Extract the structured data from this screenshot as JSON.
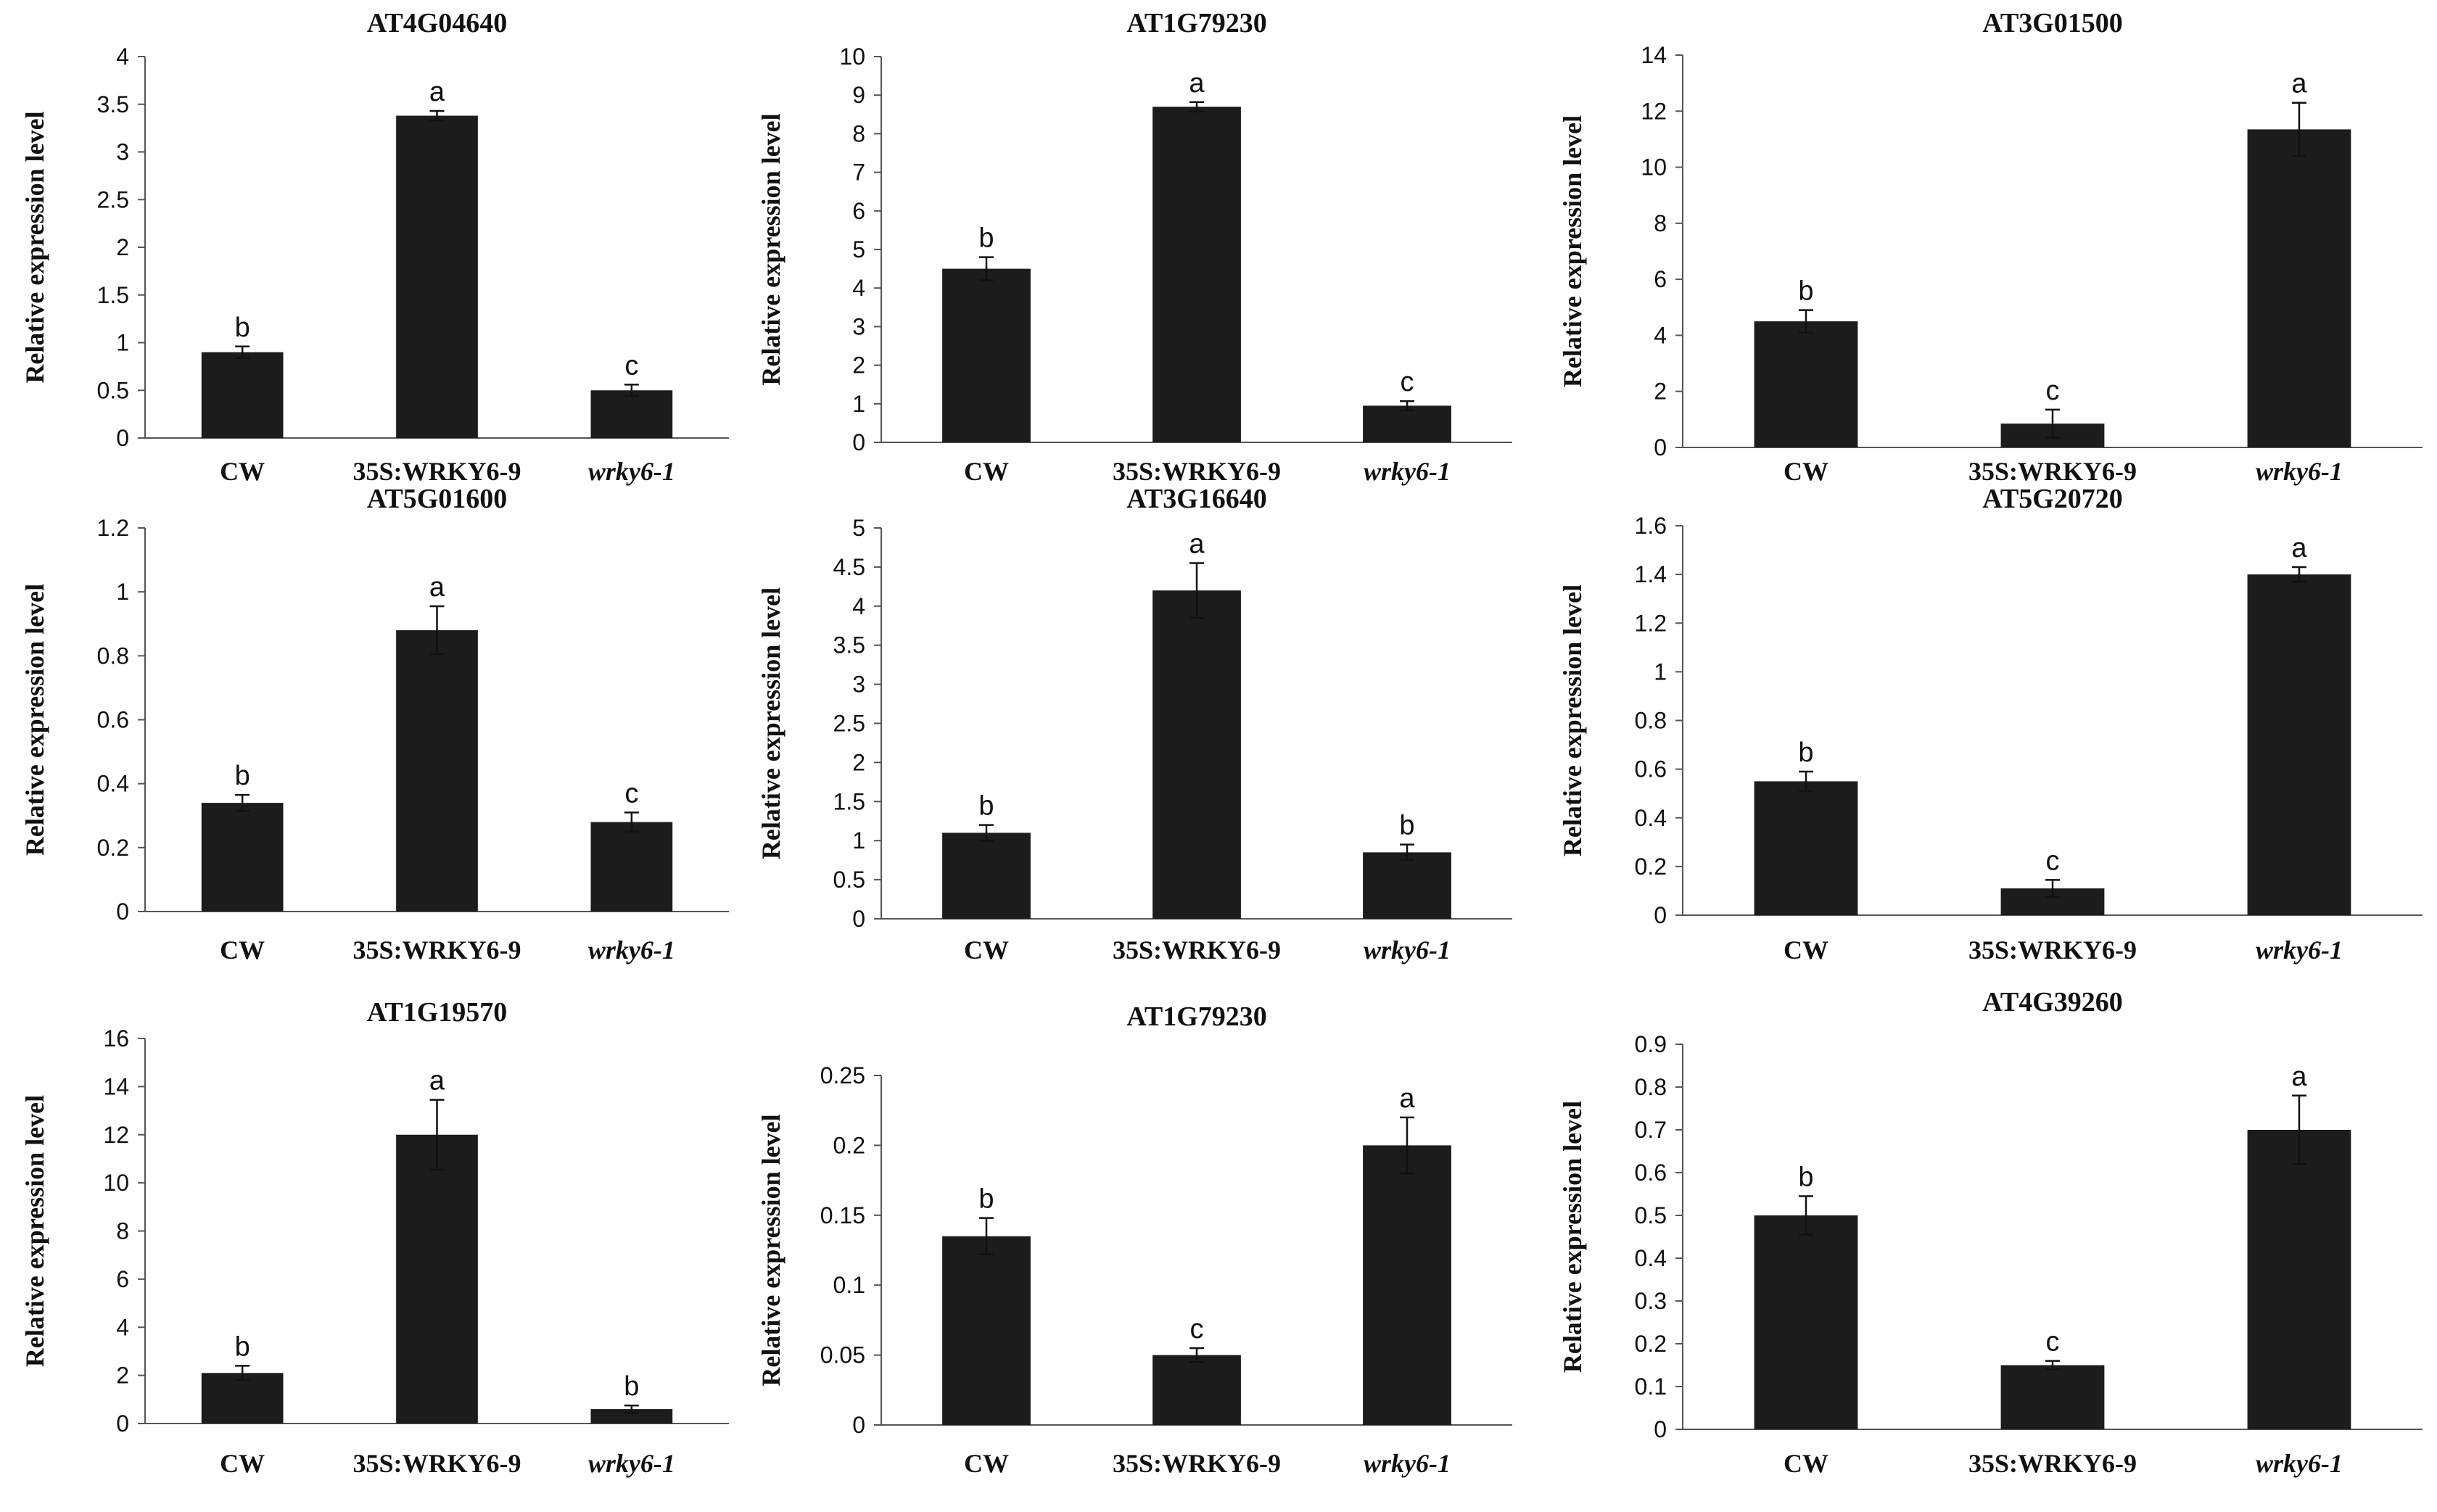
{
  "chart_data": [
    {
      "type": "bar",
      "title": "AT4G04640",
      "ylabel": "Relative expression level",
      "xlabel": "",
      "categories": [
        "CW",
        "35S:WRKY6-9",
        "wrky6-1"
      ],
      "values": [
        0.9,
        3.38,
        0.5
      ],
      "errors": [
        0.06,
        0.05,
        0.06
      ],
      "significance": [
        "b",
        "a",
        "c"
      ],
      "ylim": [
        0,
        4
      ],
      "yticks": [
        "0",
        "0.5",
        "1",
        "1.5",
        "2",
        "2.5",
        "3",
        "3.5",
        "4"
      ]
    },
    {
      "type": "bar",
      "title": "AT1G79230",
      "ylabel": "Relative expression level",
      "xlabel": "",
      "categories": [
        "CW",
        "35S:WRKY6-9",
        "wrky6-1"
      ],
      "values": [
        4.5,
        8.7,
        0.95
      ],
      "errors": [
        0.3,
        0.12,
        0.12
      ],
      "significance": [
        "b",
        "a",
        "c"
      ],
      "ylim": [
        0,
        10
      ],
      "yticks": [
        "0",
        "1",
        "2",
        "3",
        "4",
        "5",
        "6",
        "7",
        "8",
        "9",
        "10"
      ]
    },
    {
      "type": "bar",
      "title": "AT3G01500",
      "ylabel": "Relative expression level",
      "xlabel": "",
      "categories": [
        "CW",
        "35S:WRKY6-9",
        "wrky6-1"
      ],
      "values": [
        4.5,
        0.85,
        11.35
      ],
      "errors": [
        0.4,
        0.5,
        0.95
      ],
      "significance": [
        "b",
        "c",
        "a"
      ],
      "ylim": [
        0,
        14
      ],
      "yticks": [
        "0",
        "2",
        "4",
        "6",
        "8",
        "10",
        "12",
        "14"
      ]
    },
    {
      "type": "bar",
      "title": "AT5G01600",
      "ylabel": "Relative expression level",
      "xlabel": "",
      "categories": [
        "CW",
        "35S:WRKY6-9",
        "wrky6-1"
      ],
      "values": [
        0.34,
        0.88,
        0.28
      ],
      "errors": [
        0.025,
        0.075,
        0.03
      ],
      "significance": [
        "b",
        "a",
        "c"
      ],
      "ylim": [
        0,
        1.2
      ],
      "yticks": [
        "0",
        "0.2",
        "0.4",
        "0.6",
        "0.8",
        "1",
        "1.2"
      ]
    },
    {
      "type": "bar",
      "title": "AT3G16640",
      "ylabel": "Relative expression level",
      "xlabel": "",
      "categories": [
        "CW",
        "35S:WRKY6-9",
        "wrky6-1"
      ],
      "values": [
        1.1,
        4.2,
        0.85
      ],
      "errors": [
        0.1,
        0.35,
        0.1
      ],
      "significance": [
        "b",
        "a",
        "b"
      ],
      "ylim": [
        0,
        5
      ],
      "yticks": [
        "0",
        "0.5",
        "1",
        "1.5",
        "2",
        "2.5",
        "3",
        "3.5",
        "4",
        "4.5",
        "5"
      ]
    },
    {
      "type": "bar",
      "title": "AT5G20720",
      "ylabel": "Relative expression level",
      "xlabel": "",
      "categories": [
        "CW",
        "35S:WRKY6-9",
        "wrky6-1"
      ],
      "values": [
        0.55,
        0.11,
        1.4
      ],
      "errors": [
        0.04,
        0.035,
        0.03
      ],
      "significance": [
        "b",
        "c",
        "a"
      ],
      "ylim": [
        0,
        1.6
      ],
      "yticks": [
        "0",
        "0.2",
        "0.4",
        "0.6",
        "0.8",
        "1",
        "1.2",
        "1.4",
        "1.6"
      ]
    },
    {
      "type": "bar",
      "title": "AT1G19570",
      "ylabel": "Relative expression level",
      "xlabel": "",
      "categories": [
        "CW",
        "35S:WRKY6-9",
        "wrky6-1"
      ],
      "values": [
        2.1,
        12.0,
        0.6
      ],
      "errors": [
        0.3,
        1.45,
        0.15
      ],
      "significance": [
        "b",
        "a",
        "b"
      ],
      "ylim": [
        0,
        16
      ],
      "yticks": [
        "0",
        "2",
        "4",
        "6",
        "8",
        "10",
        "12",
        "14",
        "16"
      ]
    },
    {
      "type": "bar",
      "title": "AT1G79230",
      "ylabel": "Relative expression level",
      "xlabel": "",
      "categories": [
        "CW",
        "35S:WRKY6-9",
        "wrky6-1"
      ],
      "values": [
        0.135,
        0.05,
        0.2
      ],
      "errors": [
        0.013,
        0.005,
        0.02
      ],
      "significance": [
        "b",
        "c",
        "a"
      ],
      "ylim": [
        0,
        0.25
      ],
      "yticks": [
        "0",
        "0.05",
        "0.1",
        "0.15",
        "0.2",
        "0.25"
      ]
    },
    {
      "type": "bar",
      "title": "AT4G39260",
      "ylabel": "Relative expression level",
      "xlabel": "",
      "categories": [
        "CW",
        "35S:WRKY6-9",
        "wrky6-1"
      ],
      "values": [
        0.5,
        0.15,
        0.7
      ],
      "errors": [
        0.045,
        0.01,
        0.08
      ],
      "significance": [
        "b",
        "c",
        "a"
      ],
      "ylim": [
        0,
        0.9
      ],
      "yticks": [
        "0",
        "0.1",
        "0.2",
        "0.3",
        "0.4",
        "0.5",
        "0.6",
        "0.7",
        "0.8",
        "0.9"
      ]
    }
  ],
  "colors": {
    "bar": "#1c1c1c",
    "axis": "#555555",
    "text": "#111111"
  }
}
